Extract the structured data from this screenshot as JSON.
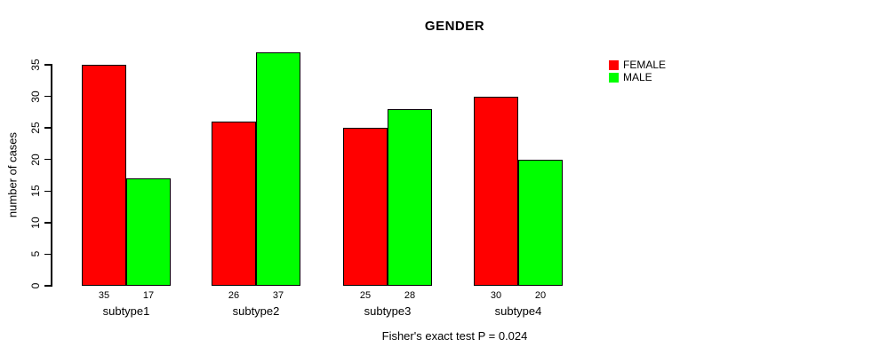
{
  "chart_data": {
    "type": "bar",
    "title": "GENDER",
    "ylabel": "number of cases",
    "xlabel": "",
    "caption": "Fisher's exact test P = 0.024",
    "categories": [
      "subtype1",
      "subtype2",
      "subtype3",
      "subtype4"
    ],
    "series": [
      {
        "name": "FEMALE",
        "color": "#ff0000",
        "values": [
          35,
          26,
          25,
          30
        ]
      },
      {
        "name": "MALE",
        "color": "#00ff00",
        "values": [
          17,
          37,
          28,
          20
        ]
      }
    ],
    "bar_value_labels": [
      [
        "35",
        "17"
      ],
      [
        "26",
        "37"
      ],
      [
        "25",
        "28"
      ],
      [
        "30",
        "20"
      ]
    ],
    "yticks": [
      0,
      5,
      10,
      15,
      20,
      25,
      30,
      35
    ],
    "ylim": [
      0,
      37
    ],
    "grid": false,
    "legend_position": "top-right",
    "bar_outline_color": "#000000",
    "axis_color": "#000000",
    "background_color": "#ffffff"
  }
}
